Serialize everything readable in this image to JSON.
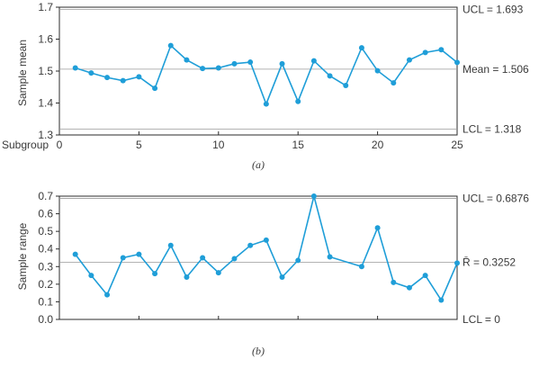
{
  "chart_data": [
    {
      "type": "line",
      "title": "",
      "caption": "(a)",
      "ylabel": "Sample mean",
      "xlabel": "Subgroup",
      "xlim": [
        0,
        25
      ],
      "ylim": [
        1.3,
        1.7
      ],
      "xticks": [
        0,
        5,
        10,
        15,
        20,
        25
      ],
      "yticks": [
        1.3,
        1.4,
        1.5,
        1.6,
        1.7
      ],
      "ytick_labels": [
        "1.3",
        "1.4",
        "1.5",
        "1.6",
        "1.7"
      ],
      "color": "#1f9ed8",
      "x": [
        1,
        2,
        3,
        4,
        5,
        6,
        7,
        8,
        9,
        10,
        11,
        12,
        13,
        14,
        15,
        16,
        17,
        18,
        19,
        20,
        21,
        22,
        23,
        24,
        25
      ],
      "values": [
        1.51,
        1.494,
        1.48,
        1.47,
        1.482,
        1.446,
        1.58,
        1.535,
        1.508,
        1.51,
        1.523,
        1.528,
        1.397,
        1.523,
        1.405,
        1.532,
        1.485,
        1.455,
        1.573,
        1.501,
        1.463,
        1.535,
        1.558,
        1.567,
        1.527
      ],
      "limits": [
        {
          "value": 1.693,
          "label": "UCL = 1.693"
        },
        {
          "value": 1.506,
          "label": "Mean = 1.506"
        },
        {
          "value": 1.318,
          "label": "LCL = 1.318"
        }
      ]
    },
    {
      "type": "line",
      "title": "",
      "caption": "(b)",
      "ylabel": "Sample range",
      "xlabel": "",
      "xlim": [
        0,
        25
      ],
      "ylim": [
        0,
        0.7
      ],
      "xticks": [
        0,
        5,
        10,
        15,
        20,
        25
      ],
      "yticks": [
        0,
        0.1,
        0.2,
        0.3,
        0.4,
        0.5,
        0.6,
        0.7
      ],
      "ytick_labels": [
        "0.0",
        "0.1",
        "0.2",
        "0.3",
        "0.4",
        "0.5",
        "0.6",
        "0.7"
      ],
      "color": "#1f9ed8",
      "x": [
        1,
        2,
        3,
        4,
        5,
        6,
        7,
        8,
        9,
        10,
        11,
        12,
        13,
        14,
        15,
        16,
        17,
        18,
        19,
        20,
        21,
        22,
        23,
        24,
        25
      ],
      "values": [
        0.37,
        0.25,
        0.14,
        0.35,
        0.37,
        0.26,
        0.42,
        0.24,
        0.35,
        0.265,
        0.345,
        0.42,
        0.45,
        0.24,
        0.335,
        0.7,
        0.355,
        null,
        0.3,
        0.52,
        0.21,
        0.18,
        0.25,
        0.11,
        0.32
      ],
      "limits": [
        {
          "value": 0.6876,
          "label": "UCL = 0.6876"
        },
        {
          "value": 0.3252,
          "label": "R̄ = 0.3252"
        },
        {
          "value": 0.0,
          "label": "LCL = 0"
        }
      ]
    }
  ]
}
